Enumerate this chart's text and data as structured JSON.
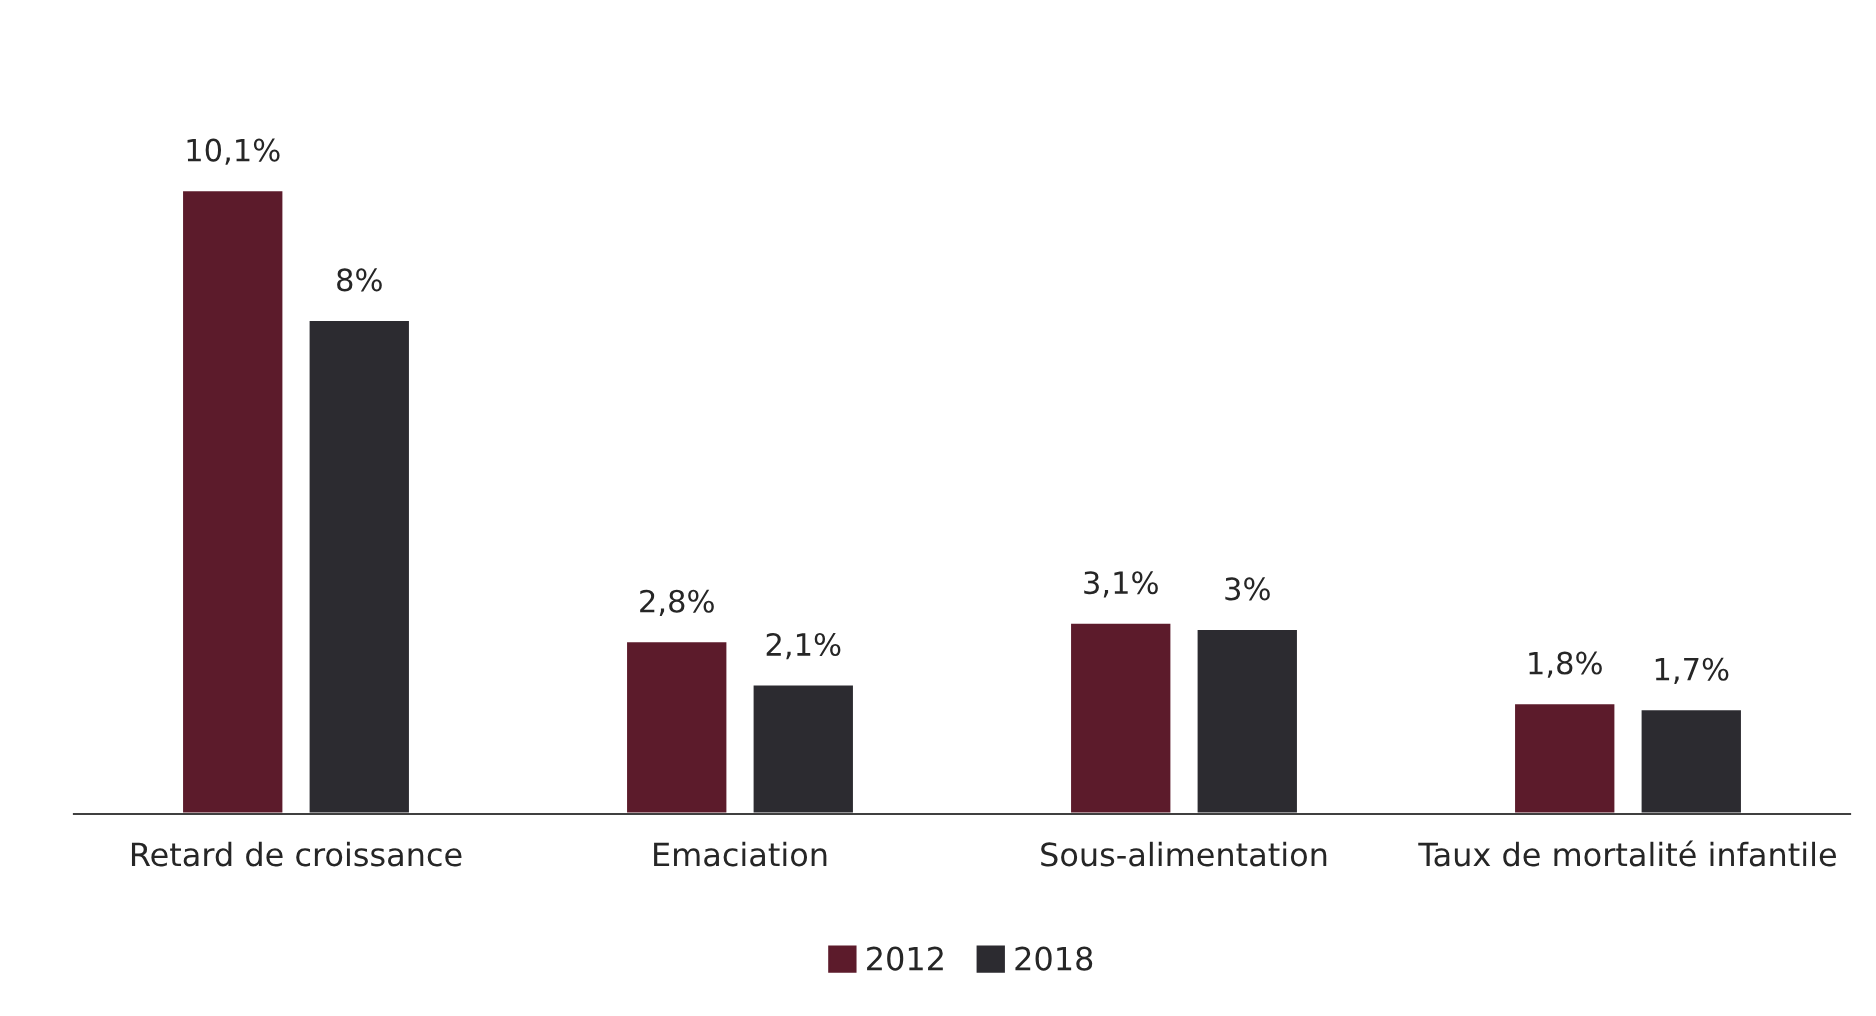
{
  "chart_data": {
    "type": "bar",
    "categories": [
      "Retard de croissance",
      "Emaciation",
      "Sous-alimentation",
      "Taux de mortalité infantile"
    ],
    "series": [
      {
        "name": "2012",
        "color": "#5c1b2b",
        "values": [
          10.1,
          2.8,
          3.1,
          1.8
        ],
        "value_labels": [
          "10,1%",
          "2,8%",
          "3,1%",
          "1,8%"
        ]
      },
      {
        "name": "2018",
        "color": "#2c2b30",
        "values": [
          8,
          2.1,
          3,
          1.7
        ],
        "value_labels": [
          "8%",
          "2,1%",
          "3%",
          "1,7%"
        ]
      }
    ],
    "legend": "bottom",
    "grid": false
  }
}
